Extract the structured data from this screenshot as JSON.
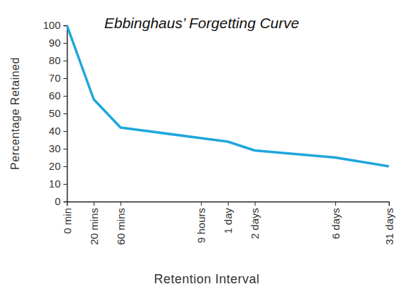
{
  "chart_data": {
    "type": "line",
    "title": "Ebbinghaus’ Forgetting Curve",
    "x_label": "Retention Interval",
    "y_label": "Percentage Retained",
    "x": [
      0,
      2,
      4,
      10,
      12,
      14,
      20,
      24
    ],
    "values": [
      100,
      58,
      42,
      36,
      34,
      29,
      25,
      20
    ],
    "color": "#1ea7dc",
    "xlim": [
      0,
      24
    ],
    "xticks": [
      {
        "value": 0,
        "label": "0 min"
      },
      {
        "value": 2,
        "label": "20 mins"
      },
      {
        "value": 4,
        "label": "60 mins"
      },
      {
        "value": 10,
        "label": "9 hours"
      },
      {
        "value": 12,
        "label": "1 day"
      },
      {
        "value": 14,
        "label": "2 days"
      },
      {
        "value": 20,
        "label": "6 days"
      },
      {
        "value": 24,
        "label": "31 days"
      }
    ],
    "ylim": [
      0,
      100
    ],
    "yticks": [
      0,
      10,
      20,
      30,
      40,
      50,
      60,
      70,
      80,
      90,
      100
    ],
    "grid": false
  }
}
